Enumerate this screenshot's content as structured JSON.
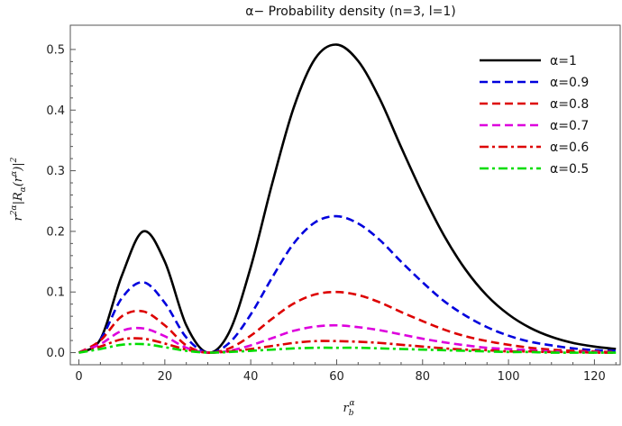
{
  "chart_data": {
    "type": "line",
    "title": "α− Probability density (n=3, l=1)",
    "xlabel": "r_b^α",
    "ylabel": "r^2α|R_α(r^α)|^2",
    "xlim": [
      -2,
      126
    ],
    "ylim": [
      -0.02,
      0.54
    ],
    "xticks": [
      0,
      20,
      40,
      60,
      80,
      100,
      120
    ],
    "yticks": [
      0.0,
      0.1,
      0.2,
      0.3,
      0.4,
      0.5
    ],
    "ytick_labels": [
      "0.0",
      "0.1",
      "0.2",
      "0.3",
      "0.4",
      "0.5"
    ],
    "legend_position": "top-right",
    "grid": false,
    "x": [
      0,
      5,
      10,
      15,
      20,
      25,
      30,
      35,
      40,
      45,
      50,
      55,
      60,
      65,
      70,
      75,
      80,
      85,
      90,
      95,
      100,
      105,
      110,
      115,
      120,
      125
    ],
    "series": [
      {
        "name": "α=1",
        "color": "#000000",
        "dash": "solid",
        "values": [
          0.0,
          0.022,
          0.127,
          0.2,
          0.15,
          0.045,
          0.0,
          0.034,
          0.141,
          0.279,
          0.404,
          0.485,
          0.508,
          0.481,
          0.419,
          0.339,
          0.262,
          0.193,
          0.137,
          0.094,
          0.063,
          0.041,
          0.026,
          0.016,
          0.01,
          0.006
        ]
      },
      {
        "name": "α=0.9",
        "color": "#0000dd",
        "dash": "dashed",
        "values": [
          0.0,
          0.022,
          0.09,
          0.116,
          0.082,
          0.025,
          0.0,
          0.016,
          0.063,
          0.124,
          0.18,
          0.215,
          0.225,
          0.213,
          0.186,
          0.15,
          0.116,
          0.085,
          0.061,
          0.042,
          0.028,
          0.018,
          0.012,
          0.007,
          0.004,
          0.003
        ]
      },
      {
        "name": "α=0.8",
        "color": "#dd0000",
        "dash": "dashed",
        "values": [
          0.0,
          0.02,
          0.06,
          0.068,
          0.045,
          0.012,
          0.0,
          0.007,
          0.028,
          0.056,
          0.081,
          0.096,
          0.1,
          0.095,
          0.083,
          0.067,
          0.052,
          0.038,
          0.027,
          0.019,
          0.013,
          0.008,
          0.005,
          0.003,
          0.002,
          0.001
        ]
      },
      {
        "name": "α=0.7",
        "color": "#dd00dd",
        "dash": "dashed",
        "values": [
          0.0,
          0.014,
          0.036,
          0.04,
          0.027,
          0.008,
          0.0,
          0.003,
          0.012,
          0.024,
          0.036,
          0.043,
          0.045,
          0.042,
          0.037,
          0.03,
          0.023,
          0.017,
          0.012,
          0.008,
          0.006,
          0.004,
          0.002,
          0.001,
          0.001,
          0.0
        ]
      },
      {
        "name": "α=0.6",
        "color": "#dd0000",
        "dash": "dashdot",
        "values": [
          0.0,
          0.01,
          0.022,
          0.023,
          0.015,
          0.005,
          0.0,
          0.002,
          0.006,
          0.011,
          0.016,
          0.019,
          0.019,
          0.018,
          0.016,
          0.013,
          0.01,
          0.007,
          0.005,
          0.004,
          0.002,
          0.002,
          0.001,
          0.001,
          0.0,
          0.0
        ]
      },
      {
        "name": "α=0.5",
        "color": "#00dd00",
        "dash": "dashdot",
        "values": [
          0.0,
          0.006,
          0.013,
          0.014,
          0.009,
          0.003,
          0.0,
          0.001,
          0.003,
          0.005,
          0.007,
          0.008,
          0.008,
          0.008,
          0.007,
          0.006,
          0.005,
          0.004,
          0.003,
          0.002,
          0.001,
          0.001,
          0.0,
          0.0,
          0.0,
          0.0
        ]
      }
    ]
  }
}
